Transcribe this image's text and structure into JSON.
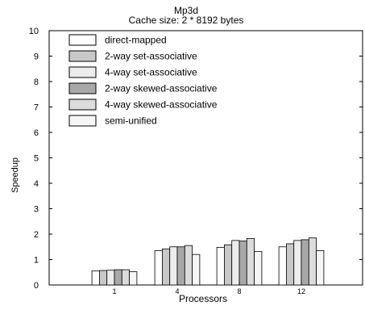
{
  "chart_data": {
    "type": "bar",
    "title": "Mp3d",
    "subtitle": "Cache size: 2 * 8192 bytes",
    "xlabel": "Processors",
    "ylabel": "Speedup",
    "ylim": [
      0,
      10
    ],
    "yticks": [
      0,
      1,
      2,
      3,
      4,
      5,
      6,
      7,
      8,
      9,
      10
    ],
    "categories": [
      "1",
      "4",
      "8",
      "12"
    ],
    "grid": false,
    "legend_position": "top-left",
    "series": [
      {
        "name": "direct-mapped",
        "color": "#ffffff",
        "values": [
          0.55,
          1.35,
          1.48,
          1.5
        ]
      },
      {
        "name": "2-way set-associative",
        "color": "#c8c8c8",
        "values": [
          0.57,
          1.42,
          1.58,
          1.62
        ]
      },
      {
        "name": "4-way set-associative",
        "color": "#ececec",
        "values": [
          0.58,
          1.5,
          1.75,
          1.75
        ]
      },
      {
        "name": "2-way skewed-associative",
        "color": "#a8a8a8",
        "values": [
          0.6,
          1.5,
          1.73,
          1.78
        ]
      },
      {
        "name": "4-way skewed-associative",
        "color": "#dcdcdc",
        "values": [
          0.6,
          1.55,
          1.83,
          1.85
        ]
      },
      {
        "name": "semi-unified",
        "color": "#f6f6f6",
        "values": [
          0.52,
          1.2,
          1.32,
          1.35
        ]
      }
    ]
  }
}
